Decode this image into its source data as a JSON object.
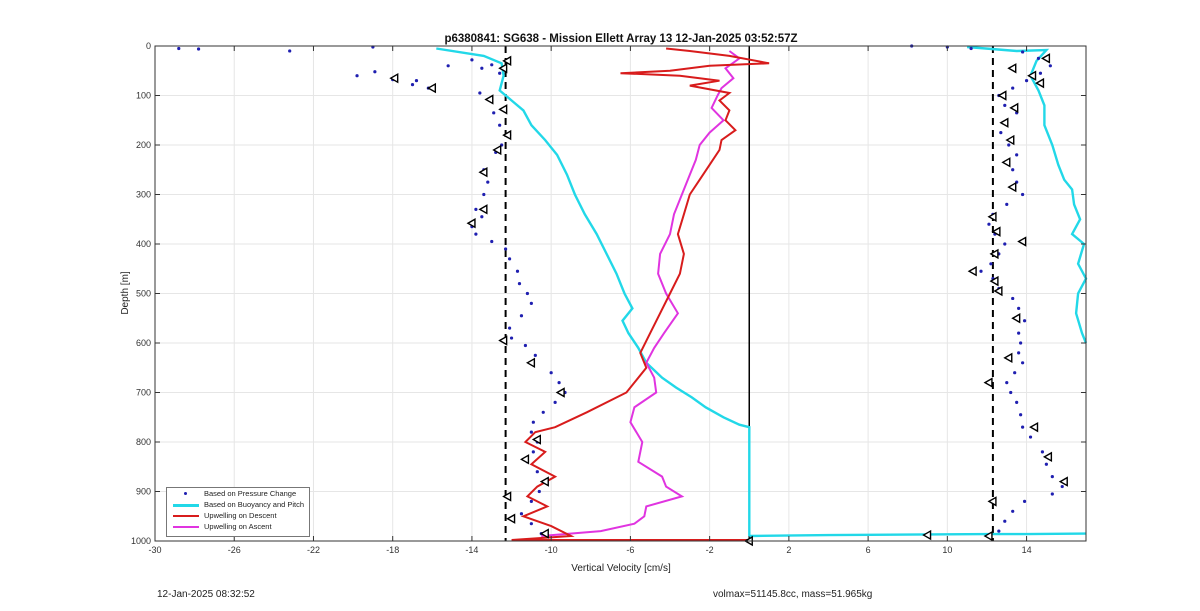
{
  "chart_data": {
    "type": "scatter",
    "title": "p6380841: SG638 - Mission Ellett Array 13 12-Jan-2025 03:52:57Z",
    "xlabel": "Vertical Velocity [cm/s]",
    "ylabel": "Depth [m]",
    "xlim": [
      -30,
      17
    ],
    "ylim": [
      1000,
      0
    ],
    "y_reversed": true,
    "xticks": [
      "-30",
      "-26",
      "-22",
      "-18",
      "-14",
      "-10",
      "-6",
      "-2",
      "2",
      "6",
      "10",
      "14"
    ],
    "xtick_values": [
      -30,
      -26,
      -22,
      -18,
      -14,
      -10,
      -6,
      -2,
      2,
      6,
      10,
      14
    ],
    "yticks": [
      "0",
      "100",
      "200",
      "300",
      "400",
      "500",
      "600",
      "700",
      "800",
      "900",
      "1000"
    ],
    "ytick_values": [
      0,
      100,
      200,
      300,
      400,
      500,
      600,
      700,
      800,
      900,
      1000
    ],
    "grid": true,
    "legend_position": "bottom-left",
    "reference_lines": [
      {
        "x": -12.3,
        "style": "dashed"
      },
      {
        "x": 12.3,
        "style": "dashed"
      },
      {
        "x": 0,
        "style": "solid"
      }
    ],
    "series": [
      {
        "name": "Based on Pressure Change",
        "style": "dots",
        "color": "#1f1fb0",
        "descent_points": [
          [
            -28.8,
            5
          ],
          [
            -27.8,
            6
          ],
          [
            -23.2,
            10
          ],
          [
            -19.0,
            2
          ],
          [
            -18.9,
            52
          ],
          [
            -19.8,
            60
          ],
          [
            -18.0,
            68
          ],
          [
            -17.0,
            78
          ],
          [
            -16.2,
            85
          ],
          [
            -16.8,
            70
          ],
          [
            -15.2,
            40
          ],
          [
            -14.0,
            28
          ],
          [
            -13.5,
            45
          ],
          [
            -13.0,
            38
          ],
          [
            -12.6,
            55
          ],
          [
            -12.2,
            30
          ],
          [
            -13.6,
            95
          ],
          [
            -13.1,
            110
          ],
          [
            -12.9,
            135
          ],
          [
            -12.6,
            160
          ],
          [
            -12.1,
            180
          ],
          [
            -12.5,
            200
          ],
          [
            -12.8,
            215
          ],
          [
            -13.4,
            250
          ],
          [
            -13.2,
            275
          ],
          [
            -13.4,
            300
          ],
          [
            -13.8,
            330
          ],
          [
            -13.5,
            345
          ],
          [
            -14.0,
            365
          ],
          [
            -13.8,
            380
          ],
          [
            -13.0,
            395
          ],
          [
            -12.3,
            410
          ],
          [
            -12.1,
            430
          ],
          [
            -11.7,
            455
          ],
          [
            -11.6,
            480
          ],
          [
            -11.2,
            500
          ],
          [
            -11.0,
            520
          ],
          [
            -11.5,
            545
          ],
          [
            -12.1,
            570
          ],
          [
            -12.0,
            590
          ],
          [
            -11.3,
            605
          ],
          [
            -10.8,
            625
          ],
          [
            -10.9,
            640
          ],
          [
            -10.0,
            660
          ],
          [
            -9.6,
            680
          ],
          [
            -9.3,
            700
          ],
          [
            -9.8,
            720
          ],
          [
            -10.4,
            740
          ],
          [
            -10.9,
            760
          ],
          [
            -11.0,
            780
          ],
          [
            -10.7,
            800
          ],
          [
            -10.9,
            820
          ],
          [
            -11.2,
            840
          ],
          [
            -10.7,
            860
          ],
          [
            -10.2,
            880
          ],
          [
            -10.6,
            900
          ],
          [
            -11.0,
            920
          ],
          [
            -11.5,
            945
          ],
          [
            -11.0,
            965
          ],
          [
            -10.5,
            985
          ]
        ],
        "ascent_points": [
          [
            8.2,
            0
          ],
          [
            10.0,
            2
          ],
          [
            11.2,
            5
          ],
          [
            13.8,
            12
          ],
          [
            14.6,
            25
          ],
          [
            15.2,
            40
          ],
          [
            14.7,
            55
          ],
          [
            14.0,
            70
          ],
          [
            13.3,
            85
          ],
          [
            12.6,
            100
          ],
          [
            12.9,
            120
          ],
          [
            13.5,
            135
          ],
          [
            12.8,
            155
          ],
          [
            12.7,
            175
          ],
          [
            13.1,
            200
          ],
          [
            13.5,
            220
          ],
          [
            13.3,
            250
          ],
          [
            13.5,
            275
          ],
          [
            13.8,
            300
          ],
          [
            13.0,
            320
          ],
          [
            12.3,
            340
          ],
          [
            12.1,
            360
          ],
          [
            12.4,
            380
          ],
          [
            12.9,
            400
          ],
          [
            12.6,
            420
          ],
          [
            12.2,
            440
          ],
          [
            11.7,
            455
          ],
          [
            12.3,
            470
          ],
          [
            12.6,
            490
          ],
          [
            13.3,
            510
          ],
          [
            13.6,
            530
          ],
          [
            13.9,
            555
          ],
          [
            13.6,
            580
          ],
          [
            13.7,
            600
          ],
          [
            13.6,
            620
          ],
          [
            13.8,
            640
          ],
          [
            13.4,
            660
          ],
          [
            13.0,
            680
          ],
          [
            13.2,
            700
          ],
          [
            13.5,
            720
          ],
          [
            13.7,
            745
          ],
          [
            13.8,
            770
          ],
          [
            14.2,
            790
          ],
          [
            14.8,
            820
          ],
          [
            15.0,
            845
          ],
          [
            15.3,
            870
          ],
          [
            15.8,
            890
          ],
          [
            15.3,
            905
          ],
          [
            13.9,
            920
          ],
          [
            13.3,
            940
          ],
          [
            12.9,
            960
          ],
          [
            12.6,
            980
          ],
          [
            9.0,
            990
          ]
        ]
      },
      {
        "name": "Based on Buoyancy and Pitch",
        "style": "line",
        "color": "#22d8e8",
        "descent": [
          [
            -15.8,
            5
          ],
          [
            -13.4,
            20
          ],
          [
            -12.5,
            35
          ],
          [
            -12.4,
            60
          ],
          [
            -12.6,
            90
          ],
          [
            -12.0,
            110
          ],
          [
            -11.4,
            130
          ],
          [
            -11.0,
            160
          ],
          [
            -10.3,
            190
          ],
          [
            -9.7,
            220
          ],
          [
            -9.2,
            260
          ],
          [
            -8.8,
            300
          ],
          [
            -8.3,
            340
          ],
          [
            -7.7,
            380
          ],
          [
            -7.2,
            420
          ],
          [
            -6.7,
            460
          ],
          [
            -6.3,
            500
          ],
          [
            -5.9,
            530
          ],
          [
            -6.4,
            555
          ],
          [
            -6.1,
            580
          ],
          [
            -5.6,
            610
          ],
          [
            -5.2,
            640
          ],
          [
            -4.4,
            670
          ],
          [
            -3.7,
            690
          ],
          [
            -2.9,
            710
          ],
          [
            -2.2,
            730
          ],
          [
            -1.3,
            750
          ],
          [
            -0.5,
            765
          ],
          [
            0,
            770
          ],
          [
            0,
            990
          ]
        ],
        "ascent": [
          [
            0,
            990
          ],
          [
            4.0,
            988
          ],
          [
            8.0,
            987
          ],
          [
            12.0,
            986
          ],
          [
            14.0,
            986
          ],
          [
            17.0,
            985
          ]
        ],
        "ascent_upper": [
          [
            11.0,
            2
          ],
          [
            13.5,
            10
          ],
          [
            15.0,
            8
          ],
          [
            14.5,
            30
          ],
          [
            14.2,
            60
          ],
          [
            14.6,
            90
          ],
          [
            14.9,
            120
          ],
          [
            14.9,
            160
          ],
          [
            15.3,
            200
          ],
          [
            15.6,
            240
          ],
          [
            15.9,
            270
          ],
          [
            16.3,
            290
          ],
          [
            16.4,
            320
          ],
          [
            16.7,
            350
          ],
          [
            16.3,
            380
          ],
          [
            16.9,
            400
          ],
          [
            16.6,
            440
          ],
          [
            17.0,
            470
          ],
          [
            16.6,
            500
          ],
          [
            16.5,
            540
          ],
          [
            16.8,
            580
          ],
          [
            17.0,
            600
          ]
        ]
      },
      {
        "name": "Upwelling on Descent",
        "style": "line",
        "color": "#d81c1c",
        "points": [
          [
            -4.2,
            5
          ],
          [
            -3.0,
            10
          ],
          [
            -1.0,
            20
          ],
          [
            1.0,
            35
          ],
          [
            -2.0,
            40
          ],
          [
            -4.0,
            50
          ],
          [
            -6.5,
            55
          ],
          [
            -3.5,
            60
          ],
          [
            -1.5,
            70
          ],
          [
            -3.0,
            80
          ],
          [
            -1.0,
            95
          ],
          [
            -1.5,
            110
          ],
          [
            -1.0,
            130
          ],
          [
            -1.2,
            150
          ],
          [
            -0.7,
            170
          ],
          [
            -1.4,
            190
          ],
          [
            -1.5,
            210
          ],
          [
            -2.0,
            240
          ],
          [
            -2.5,
            270
          ],
          [
            -3.0,
            300
          ],
          [
            -3.3,
            340
          ],
          [
            -3.6,
            380
          ],
          [
            -3.3,
            420
          ],
          [
            -3.5,
            460
          ],
          [
            -4.0,
            500
          ],
          [
            -4.5,
            540
          ],
          [
            -5.0,
            580
          ],
          [
            -5.5,
            620
          ],
          [
            -5.2,
            650
          ],
          [
            -6.2,
            700
          ],
          [
            -8.2,
            740
          ],
          [
            -9.8,
            770
          ],
          [
            -10.8,
            780
          ],
          [
            -11.3,
            800
          ],
          [
            -10.3,
            820
          ],
          [
            -11.0,
            845
          ],
          [
            -9.8,
            870
          ],
          [
            -10.7,
            890
          ],
          [
            -11.2,
            910
          ],
          [
            -10.2,
            930
          ],
          [
            -11.4,
            950
          ],
          [
            -10.0,
            970
          ],
          [
            -9.0,
            990
          ],
          [
            -12.0,
            998
          ],
          [
            0,
            998
          ]
        ]
      },
      {
        "name": "Upwelling on Ascent",
        "style": "line",
        "color": "#e034e0",
        "points": [
          [
            -1.0,
            10
          ],
          [
            -0.5,
            25
          ],
          [
            -1.2,
            45
          ],
          [
            -0.8,
            65
          ],
          [
            -1.4,
            85
          ],
          [
            -1.6,
            100
          ],
          [
            -1.9,
            125
          ],
          [
            -1.3,
            150
          ],
          [
            -2.0,
            175
          ],
          [
            -2.5,
            200
          ],
          [
            -2.7,
            230
          ],
          [
            -3.0,
            260
          ],
          [
            -3.4,
            300
          ],
          [
            -3.8,
            340
          ],
          [
            -4.0,
            380
          ],
          [
            -4.5,
            420
          ],
          [
            -4.6,
            460
          ],
          [
            -4.2,
            500
          ],
          [
            -3.6,
            540
          ],
          [
            -4.3,
            580
          ],
          [
            -4.8,
            610
          ],
          [
            -5.2,
            640
          ],
          [
            -4.8,
            670
          ],
          [
            -4.7,
            700
          ],
          [
            -5.8,
            730
          ],
          [
            -6.0,
            760
          ],
          [
            -5.4,
            800
          ],
          [
            -5.6,
            840
          ],
          [
            -4.4,
            870
          ],
          [
            -4.2,
            890
          ],
          [
            -3.4,
            910
          ],
          [
            -5.2,
            930
          ],
          [
            -5.3,
            950
          ],
          [
            -5.8,
            965
          ],
          [
            -7.5,
            980
          ],
          [
            -10.5,
            990
          ]
        ]
      }
    ],
    "markers": {
      "name": "triangle-markers",
      "color": "#000000",
      "points": [
        [
          -17.9,
          65
        ],
        [
          -16.0,
          85
        ],
        [
          -12.4,
          45
        ],
        [
          -12.2,
          30
        ],
        [
          -13.1,
          108
        ],
        [
          -12.4,
          128
        ],
        [
          -12.2,
          180
        ],
        [
          -12.7,
          210
        ],
        [
          -13.4,
          255
        ],
        [
          -13.4,
          330
        ],
        [
          -14.0,
          358
        ],
        [
          -12.4,
          595
        ],
        [
          -11.0,
          640
        ],
        [
          -9.5,
          700
        ],
        [
          -10.7,
          795
        ],
        [
          -11.3,
          835
        ],
        [
          -10.3,
          880
        ],
        [
          -12.2,
          910
        ],
        [
          -12.0,
          955
        ],
        [
          -10.3,
          985
        ],
        [
          13.3,
          45
        ],
        [
          14.3,
          60
        ],
        [
          14.7,
          75
        ],
        [
          15.0,
          25
        ],
        [
          12.8,
          100
        ],
        [
          13.4,
          125
        ],
        [
          12.9,
          155
        ],
        [
          13.2,
          190
        ],
        [
          13.0,
          235
        ],
        [
          13.3,
          285
        ],
        [
          12.3,
          345
        ],
        [
          12.5,
          375
        ],
        [
          13.8,
          395
        ],
        [
          12.4,
          420
        ],
        [
          12.6,
          495
        ],
        [
          12.4,
          475
        ],
        [
          13.5,
          550
        ],
        [
          13.1,
          630
        ],
        [
          12.1,
          680
        ],
        [
          14.4,
          770
        ],
        [
          15.1,
          830
        ],
        [
          15.9,
          880
        ],
        [
          12.3,
          920
        ],
        [
          12.1,
          990
        ],
        [
          9.0,
          988
        ],
        [
          11.3,
          455
        ],
        [
          0,
          1000
        ]
      ]
    }
  },
  "footer": {
    "left": "12-Jan-2025 08:32:52",
    "right": "volmax=51145.8cc, mass=51.965kg"
  }
}
